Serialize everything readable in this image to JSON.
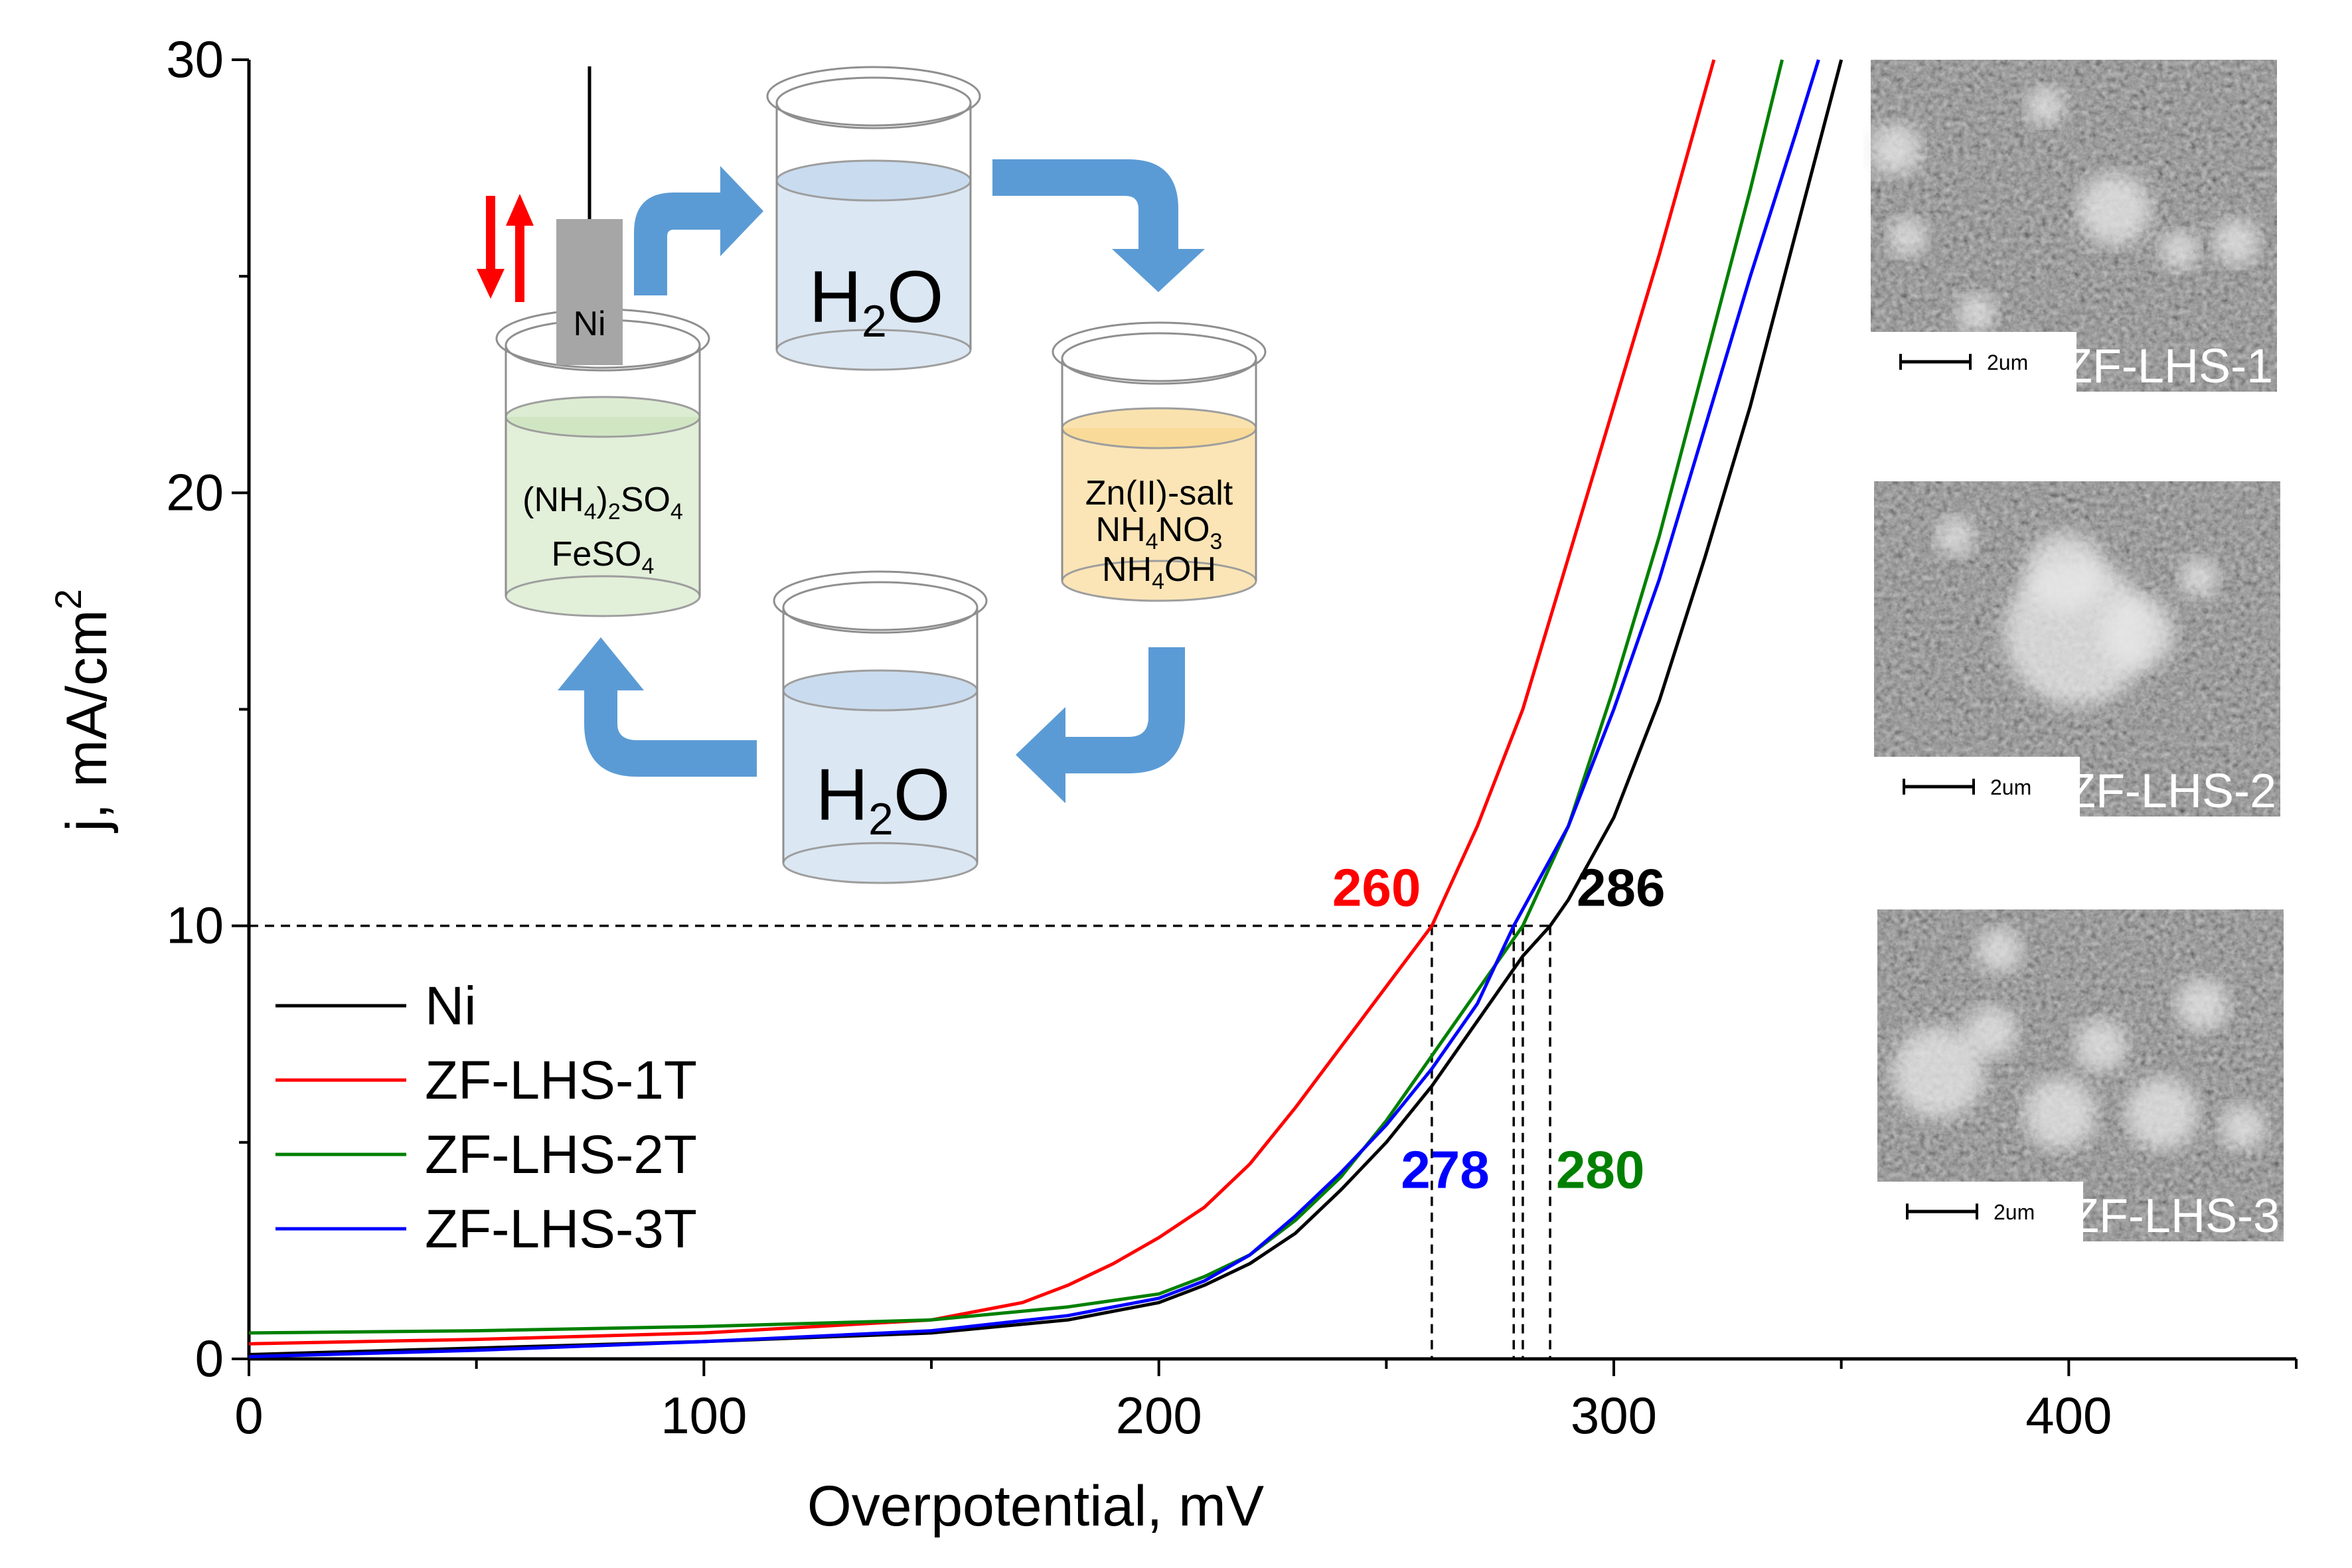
{
  "chart_data": {
    "type": "line",
    "xlabel": "Overpotential, mV",
    "ylabel": "j, mA/cm",
    "ylabel_sup": "2",
    "xlim": [
      0,
      450
    ],
    "ylim": [
      0,
      30
    ],
    "xticks": [
      0,
      100,
      200,
      300,
      400
    ],
    "yticks": [
      0,
      10,
      20,
      30
    ],
    "reference_level": 10,
    "series": [
      {
        "name": "Ni",
        "color": "#000000",
        "x": [
          0,
          50,
          100,
          150,
          180,
          200,
          210,
          220,
          230,
          240,
          250,
          260,
          270,
          280,
          286,
          290,
          300,
          310,
          320,
          330,
          340,
          350
        ],
        "y": [
          0.1,
          0.25,
          0.4,
          0.6,
          0.9,
          1.3,
          1.7,
          2.2,
          2.9,
          3.9,
          5.0,
          6.3,
          7.8,
          9.3,
          10.0,
          10.6,
          12.5,
          15.2,
          18.5,
          22.0,
          26.0,
          30.0
        ]
      },
      {
        "name": "ZF-LHS-1T",
        "color": "#ff0000",
        "x": [
          0,
          50,
          100,
          150,
          170,
          180,
          190,
          200,
          210,
          220,
          230,
          240,
          250,
          260,
          270,
          280,
          290,
          300,
          310,
          322
        ],
        "y": [
          0.35,
          0.45,
          0.6,
          0.9,
          1.3,
          1.7,
          2.2,
          2.8,
          3.5,
          4.5,
          5.8,
          7.2,
          8.6,
          10.0,
          12.3,
          15.0,
          18.5,
          22.0,
          25.5,
          30.0
        ]
      },
      {
        "name": "ZF-LHS-2T",
        "color": "#008000",
        "x": [
          0,
          50,
          100,
          150,
          180,
          200,
          210,
          220,
          230,
          240,
          250,
          260,
          270,
          280,
          290,
          300,
          310,
          320,
          330,
          337
        ],
        "y": [
          0.6,
          0.65,
          0.75,
          0.9,
          1.2,
          1.5,
          1.9,
          2.4,
          3.2,
          4.2,
          5.5,
          7.0,
          8.5,
          10.0,
          12.3,
          15.5,
          19.0,
          23.0,
          27.0,
          30.0
        ]
      },
      {
        "name": "ZF-LHS-3T",
        "color": "#0000ff",
        "x": [
          0,
          50,
          100,
          150,
          180,
          200,
          210,
          220,
          230,
          240,
          250,
          260,
          270,
          278,
          290,
          300,
          310,
          320,
          330,
          340,
          345
        ],
        "y": [
          0.05,
          0.2,
          0.4,
          0.65,
          1.0,
          1.4,
          1.8,
          2.4,
          3.3,
          4.3,
          5.4,
          6.7,
          8.2,
          10.0,
          12.3,
          15.0,
          18.0,
          21.5,
          25.0,
          28.3,
          30.0
        ]
      }
    ],
    "annotations": [
      {
        "text": "260",
        "x": 260,
        "color": "#ff0000"
      },
      {
        "text": "286",
        "x": 286,
        "color": "#000000"
      },
      {
        "text": "278",
        "x": 278,
        "color": "#0000ff"
      },
      {
        "text": "280",
        "x": 280,
        "color": "#008000"
      }
    ]
  },
  "inset": {
    "electrode": "Ni",
    "beaker1_lines": [
      "(NH",
      "4",
      ")",
      "2",
      "SO",
      "4",
      "FeSO",
      "4"
    ],
    "beaker_water_top": {
      "main": "H",
      "sub": "2",
      "tail": "O"
    },
    "beaker_zinc": {
      "line1": "Zn(II)-salt",
      "line2_a": "NH",
      "line2_b": "4",
      "line2_c": "NO",
      "line2_d": "3",
      "line3_a": "NH",
      "line3_b": "4",
      "line3_c": "OH"
    },
    "beaker_water_bottom": {
      "main": "H",
      "sub": "2",
      "tail": "O"
    },
    "colors": {
      "arrow": "#5b9bd5",
      "water": "#dbe7f3",
      "iron": "#e2efd9",
      "zinc": "#fbe5b6",
      "red_arrows": "#ff0000"
    }
  },
  "sem_images": [
    {
      "label": "ZF-LHS-1",
      "scale": "2um"
    },
    {
      "label": "ZF-LHS-2",
      "scale": "2um"
    },
    {
      "label": "ZF-LHS-3",
      "scale": "2um"
    }
  ]
}
